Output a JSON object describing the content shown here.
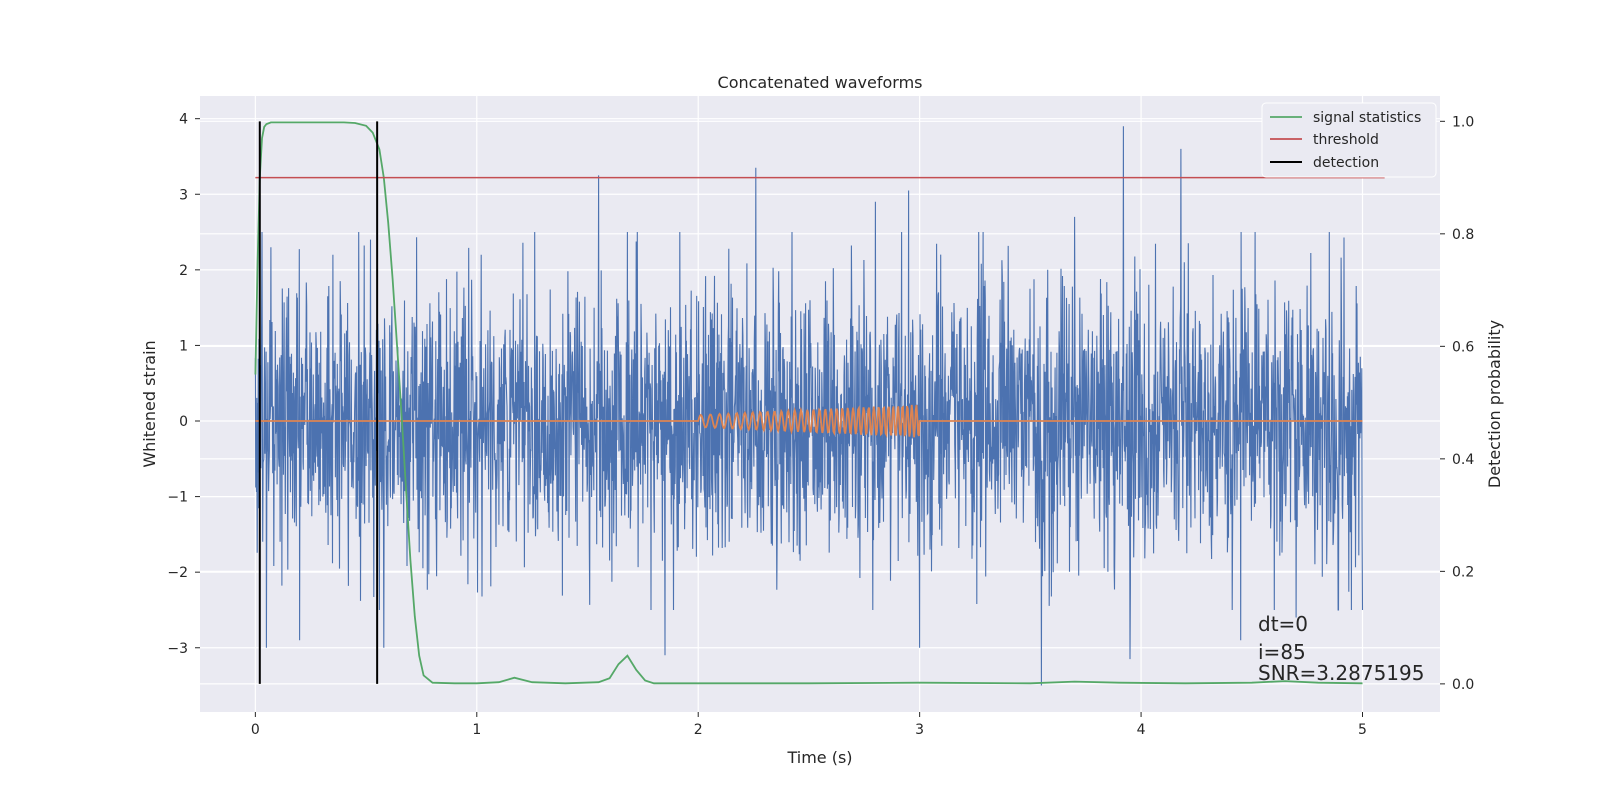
{
  "chart_data": {
    "type": "line",
    "title": "Concatenated waveforms",
    "xlabel": "Time (s)",
    "ylabel": "Whitened strain",
    "ylabel_right": "Detection probability",
    "xlim": [
      -0.25,
      5.35
    ],
    "ylim": [
      -3.85,
      4.3
    ],
    "ylim_right": [
      -0.05,
      1.045
    ],
    "xticks": [
      0,
      1,
      2,
      3,
      4,
      5
    ],
    "yticks": [
      4,
      3,
      2,
      1,
      0,
      -1,
      -2,
      -3
    ],
    "yticks_right": [
      1.0,
      0.8,
      0.6,
      0.4,
      0.2,
      0.0
    ],
    "grid": true,
    "legend_position": "top-right",
    "colors": {
      "background": "#eaeaf2",
      "strain": "#4c72b0",
      "injected": "#dd8452",
      "statistics": "#55a868",
      "threshold": "#c44e52",
      "detection": "#000000"
    },
    "series": [
      {
        "name": "signal statistics",
        "axis": "right",
        "x": [
          0,
          0.01,
          0.02,
          0.03,
          0.04,
          0.05,
          0.07,
          0.1,
          0.2,
          0.3,
          0.4,
          0.45,
          0.5,
          0.53,
          0.56,
          0.58,
          0.6,
          0.62,
          0.64,
          0.66,
          0.68,
          0.7,
          0.72,
          0.74,
          0.76,
          0.8,
          0.9,
          1.0,
          1.1,
          1.17,
          1.25,
          1.4,
          1.55,
          1.6,
          1.64,
          1.68,
          1.72,
          1.76,
          1.8,
          2.0,
          2.5,
          3.0,
          3.5,
          3.7,
          3.9,
          4.2,
          4.5,
          4.65,
          4.8,
          5.0
        ],
        "values": [
          0.55,
          0.75,
          0.9,
          0.97,
          0.99,
          0.995,
          0.998,
          0.998,
          0.998,
          0.998,
          0.998,
          0.997,
          0.992,
          0.98,
          0.95,
          0.9,
          0.82,
          0.72,
          0.6,
          0.48,
          0.35,
          0.22,
          0.12,
          0.05,
          0.015,
          0.002,
          0.001,
          0.001,
          0.003,
          0.011,
          0.003,
          0.001,
          0.003,
          0.01,
          0.035,
          0.05,
          0.025,
          0.006,
          0.001,
          0.001,
          0.001,
          0.002,
          0.001,
          0.004,
          0.002,
          0.001,
          0.002,
          0.005,
          0.002,
          0.001
        ]
      },
      {
        "name": "threshold",
        "axis": "right",
        "x": [
          0,
          5.1
        ],
        "values": [
          0.9,
          0.9
        ]
      },
      {
        "name": "detection",
        "axis": "right",
        "x_positions": [
          0.02,
          0.55
        ],
        "range": [
          0.0,
          1.0
        ]
      },
      {
        "axis": "left",
        "description": "whitened strain noise",
        "x_range": [
          0,
          5
        ],
        "spikes": [
          [
            0.03,
            2.5
          ],
          [
            0.05,
            -3.0
          ],
          [
            0.07,
            2.3
          ],
          [
            0.2,
            -2.9
          ],
          [
            0.35,
            2.2
          ],
          [
            0.52,
            2.4
          ],
          [
            0.58,
            -3.0
          ],
          [
            1.02,
            2.2
          ],
          [
            1.55,
            3.25
          ],
          [
            1.85,
            -3.1
          ],
          [
            2.26,
            3.35
          ],
          [
            2.8,
            2.9
          ],
          [
            2.95,
            3.05
          ],
          [
            3.0,
            -3.0
          ],
          [
            3.55,
            -3.5
          ],
          [
            3.7,
            2.7
          ],
          [
            3.92,
            3.9
          ],
          [
            3.95,
            -3.15
          ],
          [
            4.18,
            3.6
          ],
          [
            4.45,
            -2.9
          ],
          [
            4.7,
            -2.6
          ],
          [
            4.85,
            2.5
          ],
          [
            4.95,
            -2.5
          ]
        ]
      },
      {
        "axis": "left",
        "description": "injected chirp waveform",
        "x_range": [
          0,
          5
        ],
        "chirp_start": 2.0,
        "chirp_end": 3.0,
        "amplitude_start": 0.08,
        "amplitude_end": 0.22
      }
    ],
    "annotations": [
      "dt=0",
      "i=85",
      "SNR=3.2875195"
    ]
  }
}
